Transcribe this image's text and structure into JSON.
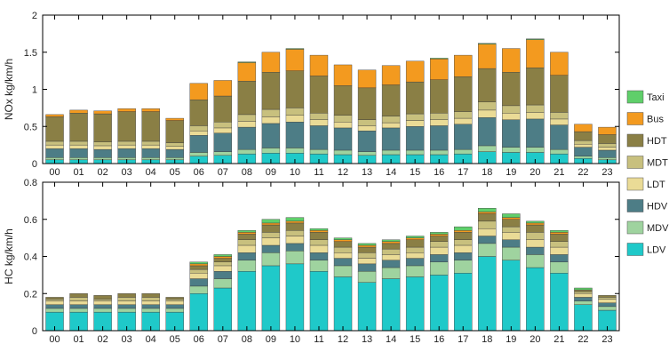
{
  "chart_data": [
    {
      "type": "bar",
      "stacked": true,
      "ylabel": "NOx kg/km/h",
      "ylim": [
        0,
        2
      ],
      "yticks": [
        "0",
        "0.5",
        "1",
        "1.5",
        "2"
      ],
      "yticks_values": [
        0,
        0.5,
        1,
        1.5,
        2
      ],
      "categories": [
        "00",
        "01",
        "02",
        "03",
        "04",
        "05",
        "06",
        "07",
        "08",
        "09",
        "10",
        "11",
        "12",
        "13",
        "14",
        "15",
        "16",
        "17",
        "18",
        "19",
        "20",
        "21",
        "22",
        "23"
      ],
      "series": [
        {
          "name": "LDV",
          "values": [
            0.05,
            0.05,
            0.05,
            0.05,
            0.05,
            0.05,
            0.1,
            0.11,
            0.13,
            0.14,
            0.14,
            0.13,
            0.12,
            0.11,
            0.12,
            0.12,
            0.12,
            0.13,
            0.16,
            0.15,
            0.15,
            0.13,
            0.07,
            0.05
          ]
        },
        {
          "name": "MDV",
          "values": [
            0.03,
            0.03,
            0.03,
            0.03,
            0.03,
            0.03,
            0.05,
            0.05,
            0.06,
            0.07,
            0.07,
            0.06,
            0.06,
            0.05,
            0.06,
            0.06,
            0.06,
            0.06,
            0.08,
            0.07,
            0.07,
            0.06,
            0.03,
            0.03
          ]
        },
        {
          "name": "HDV",
          "values": [
            0.12,
            0.12,
            0.11,
            0.12,
            0.12,
            0.11,
            0.23,
            0.25,
            0.3,
            0.33,
            0.35,
            0.32,
            0.3,
            0.28,
            0.3,
            0.32,
            0.33,
            0.34,
            0.38,
            0.37,
            0.38,
            0.33,
            0.12,
            0.1
          ]
        },
        {
          "name": "LDT",
          "values": [
            0.05,
            0.05,
            0.05,
            0.05,
            0.05,
            0.04,
            0.06,
            0.07,
            0.08,
            0.09,
            0.09,
            0.08,
            0.08,
            0.07,
            0.07,
            0.08,
            0.08,
            0.08,
            0.1,
            0.09,
            0.09,
            0.08,
            0.04,
            0.04
          ]
        },
        {
          "name": "MDT",
          "values": [
            0.05,
            0.05,
            0.05,
            0.05,
            0.05,
            0.05,
            0.07,
            0.08,
            0.09,
            0.1,
            0.1,
            0.09,
            0.09,
            0.08,
            0.09,
            0.09,
            0.09,
            0.09,
            0.11,
            0.1,
            0.1,
            0.09,
            0.05,
            0.05
          ]
        },
        {
          "name": "HDT",
          "values": [
            0.33,
            0.38,
            0.38,
            0.4,
            0.4,
            0.3,
            0.35,
            0.35,
            0.45,
            0.5,
            0.5,
            0.5,
            0.4,
            0.43,
            0.42,
            0.43,
            0.45,
            0.47,
            0.45,
            0.45,
            0.5,
            0.5,
            0.12,
            0.12
          ]
        },
        {
          "name": "Bus",
          "values": [
            0.03,
            0.04,
            0.04,
            0.04,
            0.04,
            0.03,
            0.22,
            0.21,
            0.25,
            0.27,
            0.29,
            0.28,
            0.28,
            0.24,
            0.26,
            0.28,
            0.28,
            0.29,
            0.33,
            0.32,
            0.38,
            0.31,
            0.1,
            0.1
          ]
        },
        {
          "name": "Taxi",
          "values": [
            0.0,
            0.0,
            0.0,
            0.0,
            0.0,
            0.0,
            0.0,
            0.0,
            0.01,
            0.0,
            0.01,
            0.0,
            0.0,
            0.0,
            0.0,
            0.0,
            0.01,
            0.0,
            0.01,
            0.0,
            0.01,
            0.0,
            0.0,
            0.0
          ]
        }
      ]
    },
    {
      "type": "bar",
      "stacked": true,
      "ylabel": "HC kg/km/h",
      "ylim": [
        0,
        0.8
      ],
      "yticks": [
        "0",
        "0.2",
        "0.4",
        "0.6",
        "0.8"
      ],
      "yticks_values": [
        0,
        0.2,
        0.4,
        0.6,
        0.8
      ],
      "categories": [
        "00",
        "01",
        "02",
        "03",
        "04",
        "05",
        "06",
        "07",
        "08",
        "09",
        "10",
        "11",
        "12",
        "13",
        "14",
        "15",
        "16",
        "17",
        "18",
        "19",
        "20",
        "21",
        "22",
        "23"
      ],
      "series": [
        {
          "name": "LDV",
          "values": [
            0.1,
            0.1,
            0.1,
            0.1,
            0.1,
            0.1,
            0.2,
            0.23,
            0.32,
            0.35,
            0.36,
            0.32,
            0.29,
            0.26,
            0.28,
            0.29,
            0.3,
            0.31,
            0.4,
            0.38,
            0.34,
            0.31,
            0.14,
            0.11
          ]
        },
        {
          "name": "MDV",
          "values": [
            0.02,
            0.02,
            0.02,
            0.02,
            0.02,
            0.02,
            0.04,
            0.05,
            0.06,
            0.07,
            0.07,
            0.06,
            0.06,
            0.06,
            0.06,
            0.06,
            0.07,
            0.07,
            0.07,
            0.07,
            0.07,
            0.06,
            0.02,
            0.02
          ]
        },
        {
          "name": "HDV",
          "values": [
            0.02,
            0.02,
            0.02,
            0.02,
            0.02,
            0.02,
            0.04,
            0.04,
            0.04,
            0.04,
            0.04,
            0.04,
            0.04,
            0.04,
            0.04,
            0.04,
            0.04,
            0.04,
            0.04,
            0.04,
            0.04,
            0.04,
            0.02,
            0.02
          ]
        },
        {
          "name": "LDT",
          "values": [
            0.02,
            0.02,
            0.02,
            0.02,
            0.02,
            0.02,
            0.03,
            0.03,
            0.04,
            0.04,
            0.04,
            0.04,
            0.03,
            0.03,
            0.03,
            0.03,
            0.04,
            0.04,
            0.04,
            0.04,
            0.04,
            0.04,
            0.02,
            0.02
          ]
        },
        {
          "name": "MDT",
          "values": [
            0.01,
            0.02,
            0.01,
            0.02,
            0.02,
            0.01,
            0.02,
            0.02,
            0.03,
            0.03,
            0.03,
            0.03,
            0.03,
            0.03,
            0.03,
            0.03,
            0.03,
            0.03,
            0.04,
            0.03,
            0.04,
            0.03,
            0.01,
            0.01
          ]
        },
        {
          "name": "HDT",
          "values": [
            0.01,
            0.02,
            0.02,
            0.02,
            0.02,
            0.01,
            0.02,
            0.02,
            0.03,
            0.04,
            0.04,
            0.04,
            0.03,
            0.03,
            0.03,
            0.04,
            0.03,
            0.04,
            0.04,
            0.04,
            0.04,
            0.04,
            0.01,
            0.01
          ]
        },
        {
          "name": "Bus",
          "values": [
            0.0,
            0.0,
            0.0,
            0.0,
            0.0,
            0.0,
            0.01,
            0.01,
            0.01,
            0.01,
            0.01,
            0.01,
            0.01,
            0.01,
            0.01,
            0.01,
            0.01,
            0.01,
            0.01,
            0.01,
            0.01,
            0.01,
            0.0,
            0.0
          ]
        },
        {
          "name": "Taxi",
          "values": [
            0.0,
            0.0,
            0.0,
            0.0,
            0.0,
            0.0,
            0.01,
            0.01,
            0.01,
            0.02,
            0.02,
            0.01,
            0.01,
            0.01,
            0.01,
            0.01,
            0.01,
            0.02,
            0.02,
            0.02,
            0.01,
            0.01,
            0.01,
            0.0
          ]
        }
      ]
    }
  ],
  "legend": {
    "placement": "right",
    "items": [
      "Taxi",
      "Bus",
      "HDT",
      "MDT",
      "LDT",
      "HDV",
      "MDV",
      "LDV"
    ]
  },
  "colors": {
    "LDV": "#1fc9c9",
    "MDV": "#9fd39f",
    "HDV": "#4d7d86",
    "LDT": "#eadb96",
    "MDT": "#c8c07e",
    "HDT": "#8a7f45",
    "Bus": "#f39a1f",
    "Taxi": "#5fcf6a"
  }
}
